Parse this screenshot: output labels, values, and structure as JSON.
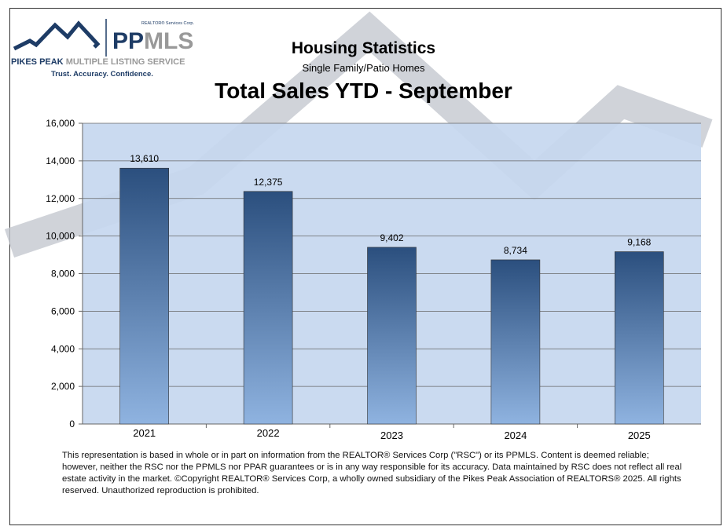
{
  "logo": {
    "corp": "REALTOR® Services Corp.",
    "brand_a": "PP",
    "brand_b": "MLS",
    "name_a": "PIKES PEAK",
    "name_b": " MULTIPLE LISTING SERVICE",
    "tagline": "Trust. Accuracy. Confidence."
  },
  "header": {
    "title": "Housing Statistics",
    "subtitle": "Single Family/Patio Homes"
  },
  "chart_data": {
    "type": "bar",
    "title": "Total Sales YTD - September",
    "categories": [
      "2021",
      "2022",
      "2023",
      "2024",
      "2025"
    ],
    "values": [
      13610,
      12375,
      9402,
      8734,
      9168
    ],
    "data_labels": [
      "13,610",
      "12,375",
      "9,402",
      "8,734",
      "9,168"
    ],
    "ylim": [
      0,
      16000
    ],
    "yticks": [
      "0",
      "2,000",
      "4,000",
      "6,000",
      "8,000",
      "10,000",
      "12,000",
      "14,000",
      "16,000"
    ],
    "grid": true,
    "colors": {
      "bar_top": "#2b4f7e",
      "bar_bottom": "#8fb3e0",
      "plot_bg": "#c5d7ef"
    }
  },
  "disclaimer": "This representation is based in whole or in part on information from the REALTOR® Services Corp (\"RSC\") or its PPMLS. Content is deemed reliable; however, neither the RSC nor the PPMLS nor PPAR guarantees or is in any way responsible for its accuracy. Data maintained by RSC does not reflect all real estate activity in the market. ©Copyright REALTOR® Services Corp, a wholly owned subsidiary of the Pikes Peak Association of REALTORS® 2025. All rights reserved. Unauthorized reproduction is prohibited."
}
